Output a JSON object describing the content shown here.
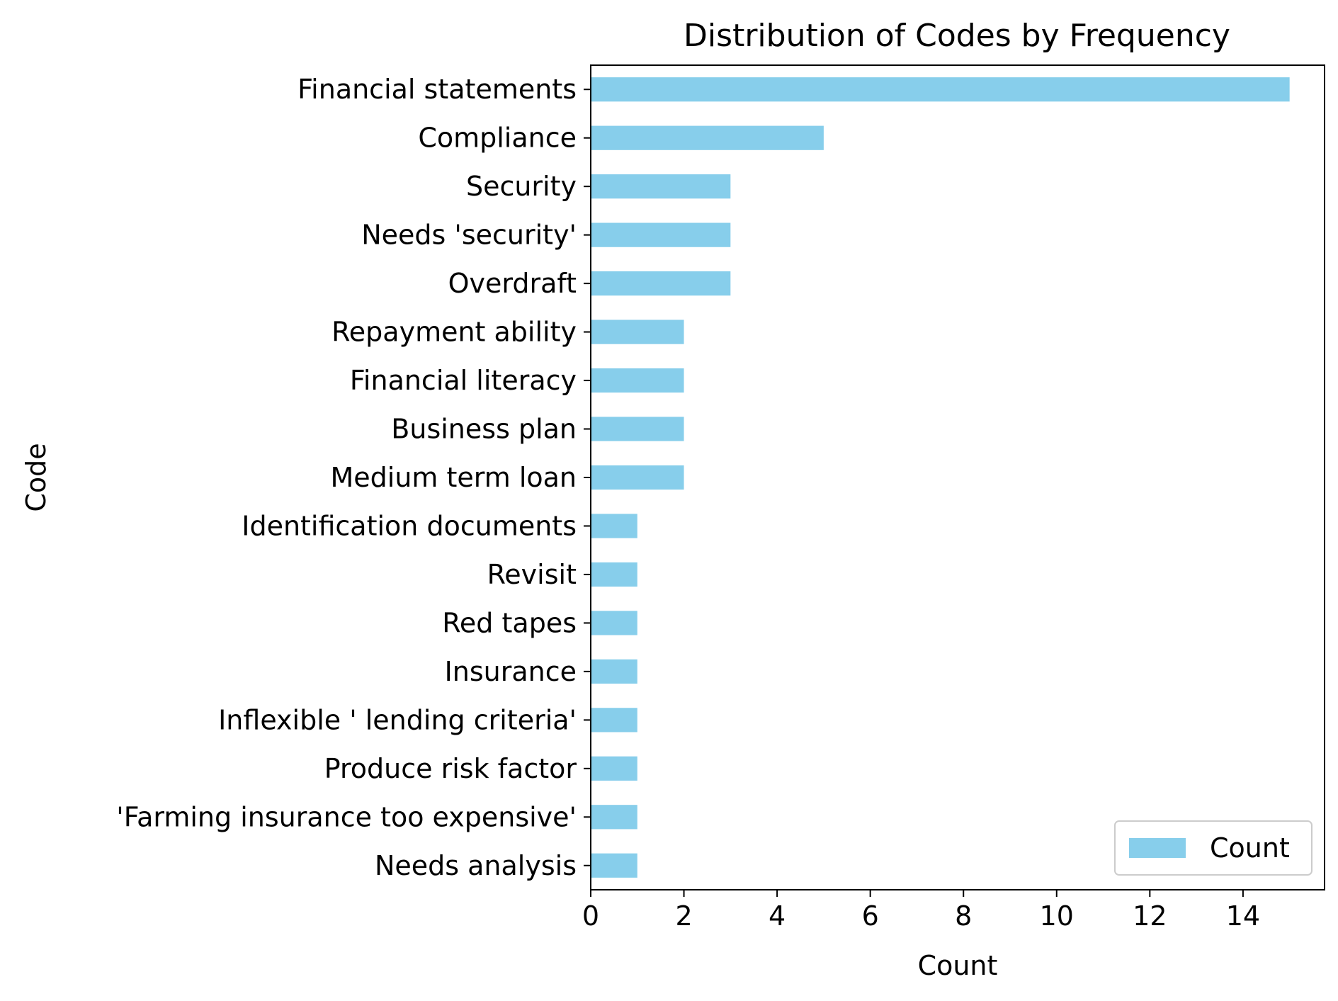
{
  "chart_data": {
    "type": "bar",
    "orientation": "horizontal",
    "title": "Distribution of Codes by Frequency",
    "xlabel": "Count",
    "ylabel": "Code",
    "categories": [
      "Financial statements",
      "Compliance",
      "Security",
      "Needs 'security'",
      "Overdraft",
      "Repayment ability",
      "Financial literacy",
      "Business plan",
      "Medium term loan",
      "Identification documents",
      "Revisit",
      "Red tapes",
      "Insurance",
      "Inflexible ' lending criteria'",
      "Produce risk factor",
      "'Farming insurance too expensive'",
      "Needs analysis"
    ],
    "series": [
      {
        "name": "Count",
        "color": "#87CEEB",
        "values": [
          15,
          5,
          3,
          3,
          3,
          2,
          2,
          2,
          2,
          1,
          1,
          1,
          1,
          1,
          1,
          1,
          1
        ]
      }
    ],
    "xlim": [
      0,
      15.75
    ],
    "xticks": [
      0,
      2,
      4,
      6,
      8,
      10,
      12,
      14
    ],
    "grid": false,
    "legend": {
      "position": "lower-right",
      "entries": [
        "Count"
      ]
    }
  }
}
